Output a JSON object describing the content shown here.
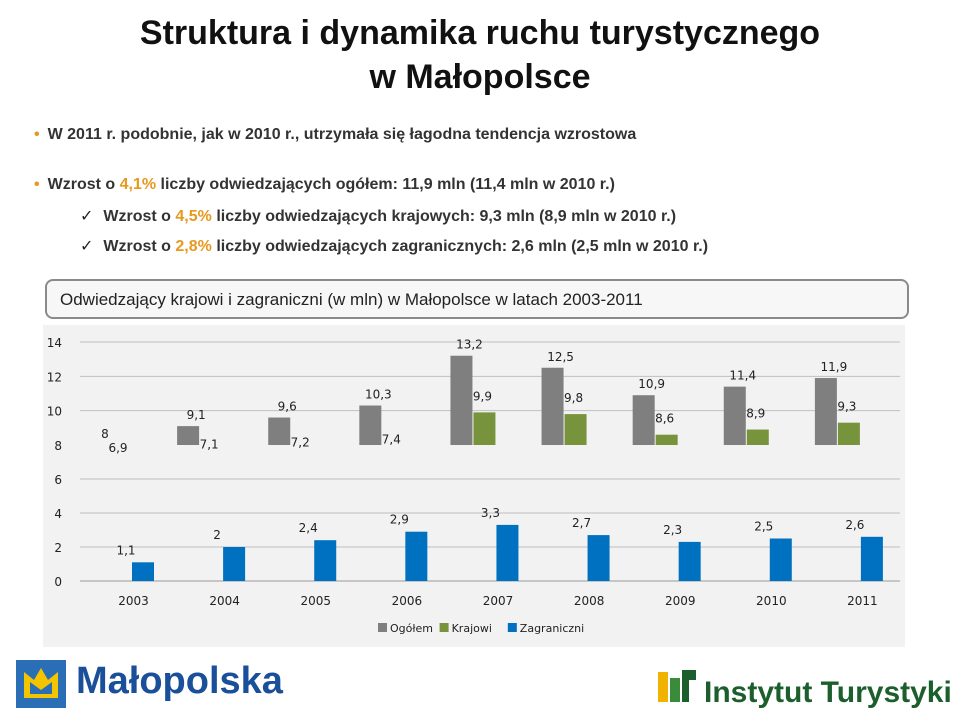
{
  "title": {
    "line1": "Struktura i dynamika ruchu turystycznego",
    "line2": "w Małopolsce"
  },
  "bullets": [
    {
      "type": "dot",
      "pre": "W 2011 r. podobnie, jak w 2010 r., utrzymała się łagodna tendencja wzrostowa",
      "pct": "",
      "post": ""
    },
    {
      "type": "dot",
      "pre": "Wzrost o ",
      "pct": "4,1%",
      "post": " liczby odwiedzających ogółem: 11,9 mln (11,4 mln w 2010 r.)"
    },
    {
      "type": "check",
      "pre": "Wzrost o ",
      "pct": "4,5%",
      "post": " liczby odwiedzających krajowych: 9,3 mln (8,9 mln w 2010 r.)"
    },
    {
      "type": "check",
      "pre": "Wzrost o ",
      "pct": "2,8%",
      "post": " liczby odwiedzających zagranicznych: 2,6 mln (2,5 mln w 2010 r.)"
    }
  ],
  "bullet_markers": {
    "dot": "•",
    "check": "✓"
  },
  "chart_data": {
    "type": "bar",
    "title": "Odwiedzający krajowi i zagraniczni (w mln) w Małopolsce w latach 2003-2011",
    "categories": [
      "2003",
      "2004",
      "2005",
      "2006",
      "2007",
      "2008",
      "2009",
      "2010",
      "2011"
    ],
    "series": [
      {
        "name": "Ogółem",
        "color": "#7f7f7f",
        "values": [
          8,
          9.1,
          9.6,
          10.3,
          13.2,
          12.5,
          10.9,
          11.4,
          11.9
        ],
        "labels": [
          "8",
          "9,1",
          "9,6",
          "10,3",
          "13,2",
          "12,5",
          "10,9",
          "11,4",
          "11,9"
        ]
      },
      {
        "name": "Krajowi",
        "color": "#77933c",
        "values": [
          6.9,
          7.1,
          7.2,
          7.4,
          9.9,
          9.8,
          8.6,
          8.9,
          9.3
        ],
        "labels": [
          "6,9",
          "7,1",
          "7,2",
          "7,4",
          "9,9",
          "9,8",
          "8,6",
          "8,9",
          "9,3"
        ]
      },
      {
        "name": "Zagraniczni",
        "color": "#0070c0",
        "values": [
          1.1,
          2,
          2.4,
          2.9,
          3.3,
          2.7,
          2.3,
          2.5,
          2.6
        ],
        "labels": [
          "1,1",
          "2",
          "2,4",
          "2,9",
          "3,3",
          "2,7",
          "2,3",
          "2,5",
          "2,6"
        ]
      }
    ],
    "yticks": [
      "0",
      "2",
      "4",
      "6",
      "8",
      "10",
      "12",
      "14"
    ],
    "ylim": [
      0,
      14
    ],
    "y_axis_break": [
      6,
      8
    ],
    "grid": true,
    "legend_position": "bottom"
  },
  "footer": {
    "left_logo_text": "Małopolska",
    "right_logo_text": "Instytut Turystyki"
  }
}
